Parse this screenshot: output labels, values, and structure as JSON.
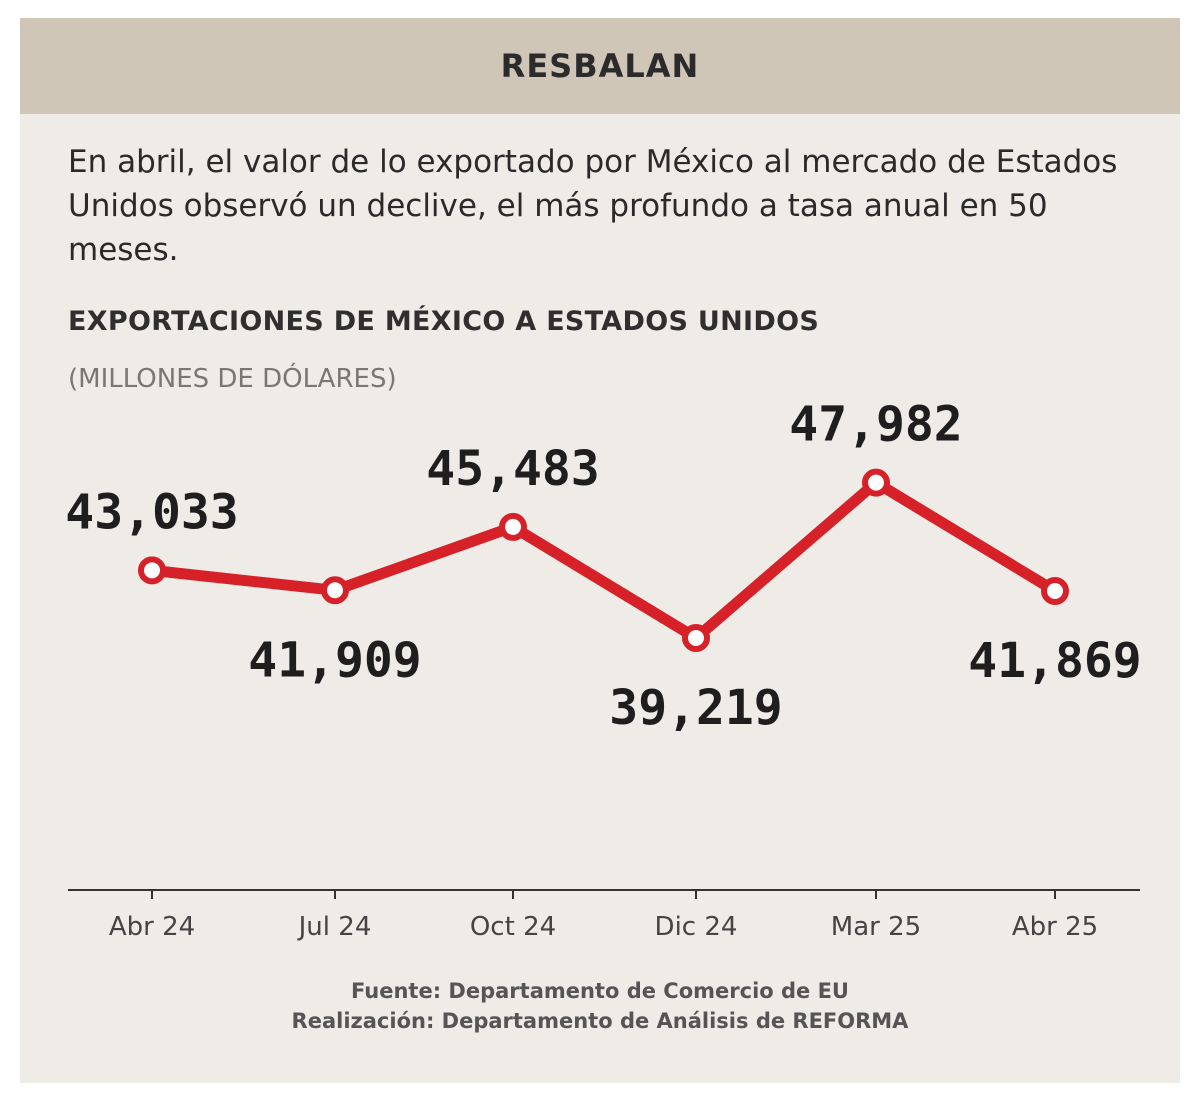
{
  "header": {
    "title": "RESBALAN"
  },
  "description": "En abril, el valor de lo exportado por México al mercado de Estados Unidos observó un declive, el más profundo a tasa anual en 50 meses.",
  "footer": {
    "source": "Fuente: Departamento de Comercio de EU",
    "credit": "Realización: Departamento de Análisis de REFORMA"
  },
  "colors": {
    "line": "#d62128",
    "title_bar": "#cfc6b8",
    "background": "#efebe6"
  },
  "chart_data": {
    "type": "line",
    "title": "EXPORTACIONES DE MÉXICO A ESTADOS UNIDOS",
    "subtitle": "(MILLONES DE DÓLARES)",
    "categories": [
      "Abr 24",
      "Jul 24",
      "Oct 24",
      "Dic 24",
      "Mar 25",
      "Abr 25"
    ],
    "series": [
      {
        "values": [
          43033,
          41909,
          45483,
          39219,
          47982,
          41869
        ],
        "labels": [
          "43,033",
          "41,909",
          "45,483",
          "39,219",
          "47,982",
          "41,869"
        ]
      }
    ],
    "ylim": [
      25000,
      50500
    ],
    "grid": false,
    "xlabel": "",
    "ylabel": ""
  }
}
